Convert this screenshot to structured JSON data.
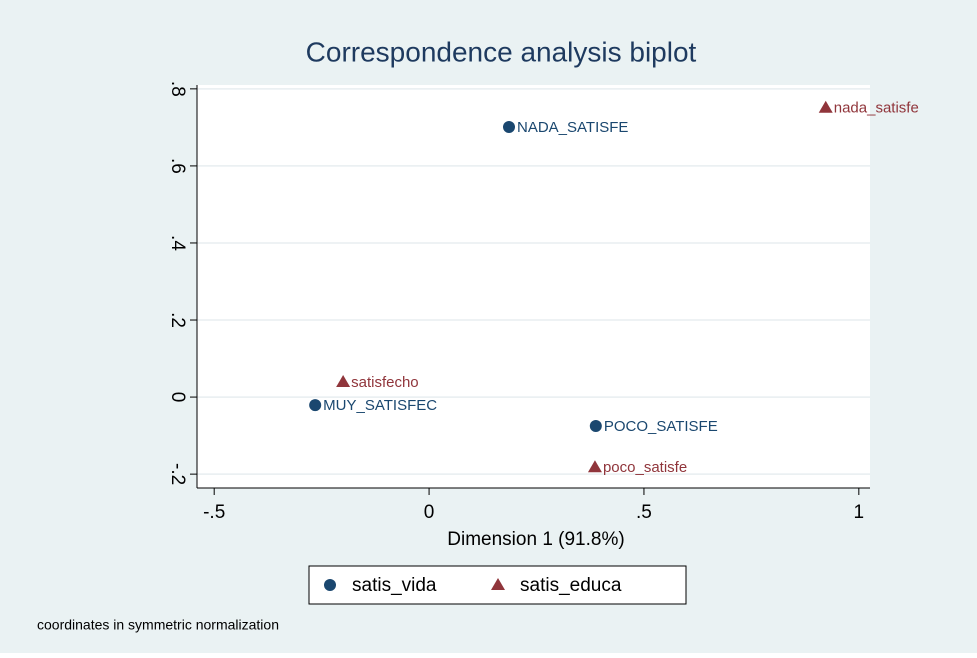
{
  "chart_data": {
    "type": "scatter",
    "title": "Correspondence analysis biplot",
    "xlabel": "Dimension 1 (91.8%)",
    "note": "coordinates in symmetric normalization",
    "xlim": [
      -0.54,
      1.026
    ],
    "ylim": [
      -0.236,
      0.81
    ],
    "xticks": [
      {
        "value": -0.5,
        "label": "-.5"
      },
      0,
      {
        "value": 0.5,
        "label": ".5"
      },
      1
    ],
    "yticks": [
      {
        "value": -0.2,
        "label": "-.2"
      },
      0,
      {
        "value": 0.2,
        "label": ".2"
      },
      {
        "value": 0.4,
        "label": ".4"
      },
      {
        "value": 0.6,
        "label": ".6"
      },
      {
        "value": 0.8,
        "label": ".8"
      }
    ],
    "grid": true,
    "legend": "bottom",
    "series": [
      {
        "name": "satis_vida",
        "color": "#1a476f",
        "marker": "circle",
        "labels": [
          "NADA_SATISFE",
          "MUY_SATISFEC",
          "POCO_SATISFE"
        ],
        "x": [
          0.186,
          -0.265,
          0.388
        ],
        "values": [
          0.701,
          -0.021,
          -0.075
        ]
      },
      {
        "name": "satis_educa",
        "color": "#90353b",
        "marker": "triangle",
        "labels": [
          "nada_satisfe",
          "satisfecho",
          "poco_satisfe"
        ],
        "x": [
          0.923,
          -0.2,
          0.386
        ],
        "values": [
          0.751,
          0.039,
          -0.182
        ]
      }
    ]
  }
}
